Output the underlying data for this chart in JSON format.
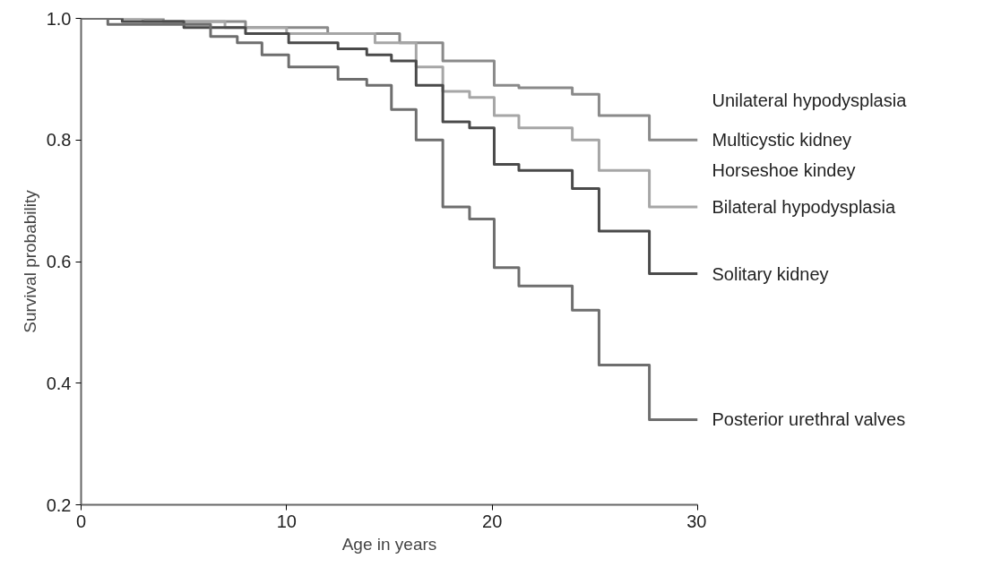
{
  "chart_data": {
    "type": "step",
    "xlabel": "Age in years",
    "ylabel": "Survival probability",
    "xlim": [
      0,
      30
    ],
    "ylim": [
      0.2,
      1.0
    ],
    "xticks": [
      0,
      10,
      20,
      30
    ],
    "yticks": [
      {
        "value": 0.2,
        "label": "0.2"
      },
      {
        "value": 0.4,
        "label": "0.4"
      },
      {
        "value": 0.6,
        "label": "0.6"
      },
      {
        "value": 0.8,
        "label": "0.8"
      },
      {
        "value": 1.0,
        "label": "1.0"
      }
    ],
    "grid": false,
    "series": [
      {
        "name": "Unilateral hypodysplasia",
        "color": "#8a8a8a",
        "x": [
          0,
          4,
          8,
          12,
          15.5,
          17.6,
          20.1,
          21.3,
          23.9,
          25.2,
          27.65,
          30
        ],
        "values": [
          1.0,
          0.995,
          0.985,
          0.975,
          0.96,
          0.93,
          0.89,
          0.886,
          0.875,
          0.84,
          0.8,
          0.8
        ]
      },
      {
        "name": "Bilateral hypodysplasia",
        "color": "#a6a6a6",
        "x": [
          0,
          3,
          7,
          10,
          14.3,
          16.3,
          17.6,
          18.9,
          20.1,
          21.3,
          23.9,
          25.2,
          27.65,
          30
        ],
        "values": [
          1.0,
          0.995,
          0.985,
          0.975,
          0.96,
          0.92,
          0.88,
          0.87,
          0.84,
          0.82,
          0.8,
          0.75,
          0.69,
          0.69
        ]
      },
      {
        "name": "Solitary kidney",
        "color": "#4a4a4a",
        "x": [
          0,
          2,
          5,
          8,
          10.1,
          12.5,
          13.9,
          15.1,
          16.3,
          17.6,
          18.9,
          20.1,
          21.3,
          23.9,
          25.2,
          27.65,
          30
        ],
        "values": [
          1.0,
          0.995,
          0.985,
          0.975,
          0.96,
          0.95,
          0.94,
          0.93,
          0.89,
          0.83,
          0.82,
          0.76,
          0.75,
          0.72,
          0.65,
          0.58,
          0.58
        ]
      },
      {
        "name": "Posterior urethral valves",
        "color": "#6e6e6e",
        "x": [
          0,
          1.3,
          6.3,
          7.6,
          8.8,
          10.1,
          12.5,
          13.9,
          15.1,
          16.3,
          17.6,
          18.9,
          20.1,
          21.3,
          23.9,
          25.2,
          27.65,
          30
        ],
        "values": [
          1.0,
          0.99,
          0.97,
          0.96,
          0.94,
          0.92,
          0.9,
          0.89,
          0.85,
          0.8,
          0.69,
          0.67,
          0.59,
          0.56,
          0.52,
          0.43,
          0.34,
          0.34
        ]
      }
    ],
    "annotations": [
      "Multicystic kidney",
      "Horseshoe kindey"
    ],
    "marker": "none",
    "line_style": "solid"
  }
}
